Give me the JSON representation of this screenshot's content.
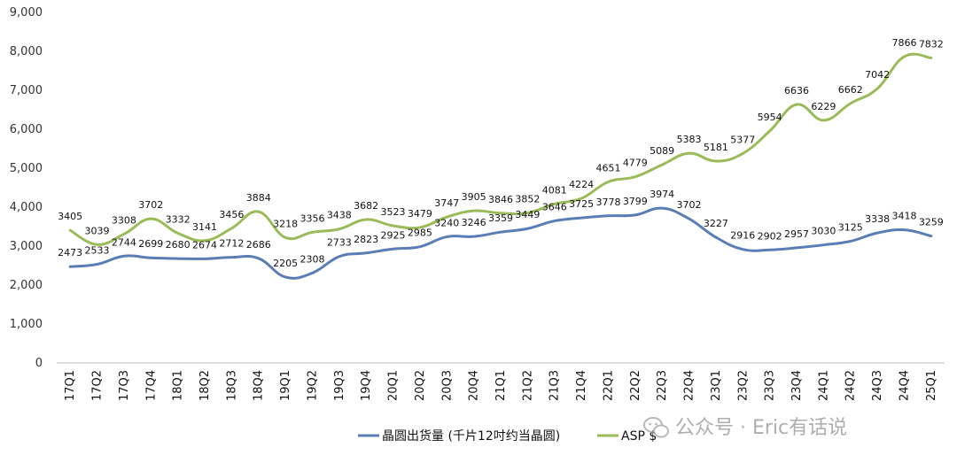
{
  "chart_data": {
    "type": "line",
    "categories": [
      "17Q1",
      "17Q2",
      "17Q3",
      "17Q4",
      "18Q1",
      "18Q2",
      "18Q3",
      "18Q4",
      "19Q1",
      "19Q2",
      "19Q3",
      "19Q4",
      "20Q1",
      "20Q2",
      "20Q3",
      "20Q4",
      "21Q1",
      "21Q2",
      "21Q3",
      "21Q4",
      "22Q1",
      "22Q2",
      "22Q3",
      "22Q4",
      "23Q1",
      "23Q2",
      "23Q3",
      "23Q4",
      "24Q1",
      "24Q2",
      "24Q3",
      "24Q4",
      "25Q1"
    ],
    "series": [
      {
        "name": "晶圆出货量 (千片12吋约当晶圆)",
        "color": "#5b7db5",
        "values": [
          2473,
          2533,
          2744,
          2699,
          2680,
          2674,
          2712,
          2686,
          2205,
          2308,
          2733,
          2823,
          2925,
          2985,
          3240,
          3246,
          3359,
          3449,
          3646,
          3725,
          3778,
          3799,
          3974,
          3702,
          3227,
          2916,
          2902,
          2957,
          3030,
          3125,
          3338,
          3418,
          3259
        ]
      },
      {
        "name": "ASP $",
        "color": "#9bbb59",
        "values": [
          3405,
          3039,
          3308,
          3702,
          3332,
          3141,
          3456,
          3884,
          3218,
          3356,
          3438,
          3682,
          3523,
          3479,
          3747,
          3905,
          3846,
          3852,
          4081,
          4224,
          4651,
          4779,
          5089,
          5383,
          5181,
          5377,
          5954,
          6636,
          6229,
          6662,
          7042,
          7866,
          7832
        ]
      }
    ],
    "ylim": [
      0,
      9000
    ],
    "yticks": [
      "0",
      "1,000",
      "2,000",
      "3,000",
      "4,000",
      "5,000",
      "6,000",
      "7,000",
      "8,000",
      "9,000"
    ],
    "grid": false,
    "legend_position": "bottom"
  },
  "watermark": {
    "text": "公众号 · Eric有话说",
    "icon": "wechat-icon"
  }
}
